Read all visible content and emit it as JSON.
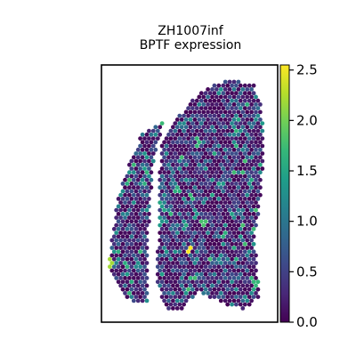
{
  "chart_data": {
    "type": "heatmap",
    "title": "ZH1007inf",
    "subtitle": "BPTF expression",
    "xlabel": "",
    "ylabel": "",
    "grid": false,
    "legend": "colorbar-right",
    "colormap": "viridis",
    "colorbar": {
      "min": 0.0,
      "max": 2.55,
      "ticks": [
        0.0,
        0.5,
        1.0,
        1.5,
        2.0,
        2.5
      ],
      "tick_labels": [
        "0.0",
        "0.5",
        "1.0",
        "1.5",
        "2.0",
        "2.5"
      ]
    },
    "spot_stats": {
      "value_range": [
        0.0,
        2.55
      ],
      "typical_value": 0.3,
      "max_spot_value": 2.55
    },
    "notes_hotspots": [
      {
        "x": 0.5,
        "y": 0.72,
        "value": 2.55
      },
      {
        "x": 0.05,
        "y": 0.77,
        "value": 2.2
      },
      {
        "x": 0.58,
        "y": 0.62,
        "value": 1.8
      },
      {
        "x": 0.55,
        "y": 0.3,
        "value": 1.7
      },
      {
        "x": 0.43,
        "y": 0.48,
        "value": 1.6
      },
      {
        "x": 0.88,
        "y": 0.85,
        "value": 1.7
      },
      {
        "x": 0.32,
        "y": 0.92,
        "value": 1.9
      }
    ]
  },
  "colors": {
    "viridis_stops": [
      "#440154",
      "#482878",
      "#3e4989",
      "#31688e",
      "#26828e",
      "#1f9e89",
      "#35b779",
      "#6ece58",
      "#b5de2b",
      "#fde725"
    ],
    "frame": "#000000",
    "background": "#ffffff"
  }
}
